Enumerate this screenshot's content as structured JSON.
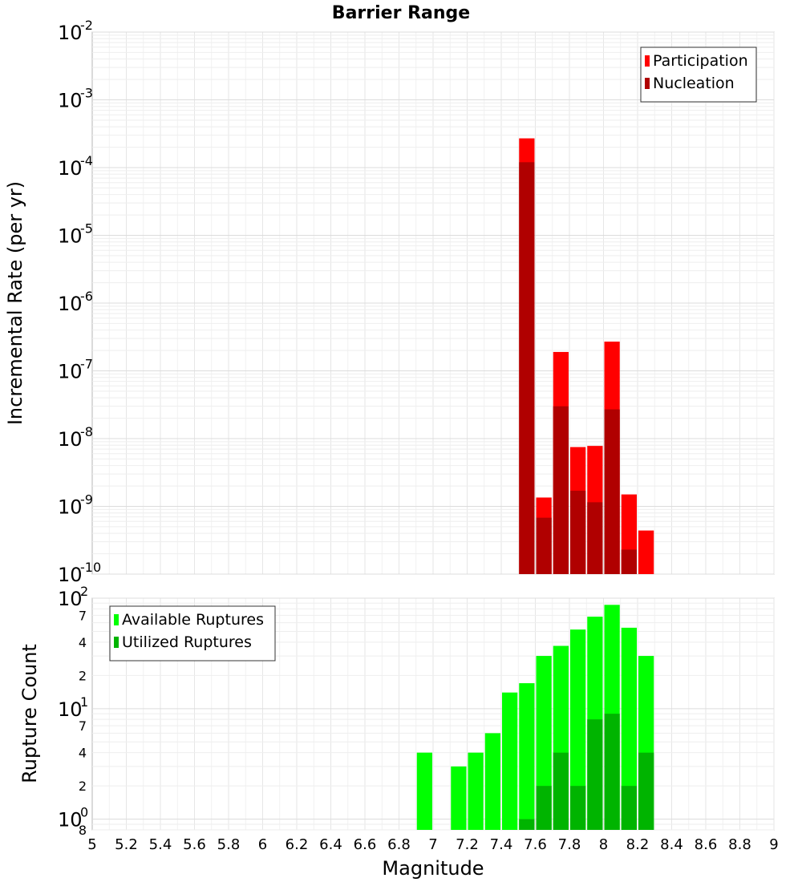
{
  "chart_data": [
    {
      "type": "bar",
      "title": "Barrier Range",
      "xlabel": "",
      "ylabel": "Incremental Rate (per yr)",
      "xlim": [
        5,
        9
      ],
      "ylim": [
        1e-10,
        0.01
      ],
      "yscale": "log",
      "grid": true,
      "legend_position": "top-right",
      "bar_width": 0.1,
      "x": [
        7.55,
        7.65,
        7.75,
        7.85,
        7.95,
        8.05,
        8.15,
        8.25
      ],
      "series": [
        {
          "name": "Participation",
          "color": "#ff0000",
          "values": [
            0.00027,
            1.35e-09,
            1.9e-07,
            7.5e-09,
            7.8e-09,
            2.7e-07,
            1.5e-09,
            4.4e-10
          ]
        },
        {
          "name": "Nucleation",
          "color": "#b00000",
          "values": [
            0.00012,
            6.8e-10,
            3e-08,
            1.7e-09,
            1.15e-09,
            2.7e-08,
            2.3e-10,
            0
          ]
        }
      ],
      "yticks": [
        {
          "base": "10",
          "exp": "-2"
        },
        {
          "base": "10",
          "exp": "-3"
        },
        {
          "base": "10",
          "exp": "-4"
        },
        {
          "base": "10",
          "exp": "-5"
        },
        {
          "base": "10",
          "exp": "-6"
        },
        {
          "base": "10",
          "exp": "-7"
        },
        {
          "base": "10",
          "exp": "-8"
        },
        {
          "base": "10",
          "exp": "-9"
        },
        {
          "base": "10",
          "exp": "-10"
        }
      ]
    },
    {
      "type": "bar",
      "title": "",
      "xlabel": "Magnitude",
      "ylabel": "Rupture Count",
      "xlim": [
        5,
        9
      ],
      "ylim": [
        0.8,
        100
      ],
      "yscale": "log",
      "grid": true,
      "legend_position": "top-left",
      "bar_width": 0.1,
      "x": [
        6.95,
        7.15,
        7.25,
        7.35,
        7.45,
        7.55,
        7.65,
        7.75,
        7.85,
        7.95,
        8.05,
        8.15,
        8.25
      ],
      "series": [
        {
          "name": "Available Ruptures",
          "color": "#00ff00",
          "values": [
            4,
            3,
            4,
            6,
            14,
            17,
            30,
            37,
            52,
            68,
            87,
            54,
            30
          ]
        },
        {
          "name": "Utilized Ruptures",
          "color": "#00b400",
          "values": [
            0,
            0,
            0,
            0,
            0,
            1,
            2,
            4,
            2,
            8,
            9,
            2,
            4
          ]
        }
      ],
      "yticks": [
        {
          "base": "10",
          "exp": "2",
          "value": 100
        },
        {
          "base": "7",
          "exp": "",
          "value": 70
        },
        {
          "base": "4",
          "exp": "",
          "value": 40
        },
        {
          "base": "2",
          "exp": "",
          "value": 20
        },
        {
          "base": "10",
          "exp": "1",
          "value": 10
        },
        {
          "base": "7",
          "exp": "",
          "value": 7
        },
        {
          "base": "4",
          "exp": "",
          "value": 4
        },
        {
          "base": "2",
          "exp": "",
          "value": 2
        },
        {
          "base": "10",
          "exp": "0",
          "value": 1
        },
        {
          "base": "8",
          "exp": "",
          "value": 0.8
        }
      ],
      "xticks": [
        "5",
        "5.2",
        "5.4",
        "5.6",
        "5.8",
        "6",
        "6.2",
        "6.4",
        "6.6",
        "6.8",
        "7",
        "7.2",
        "7.4",
        "7.6",
        "7.8",
        "8",
        "8.2",
        "8.4",
        "8.6",
        "8.8",
        "9"
      ]
    }
  ]
}
